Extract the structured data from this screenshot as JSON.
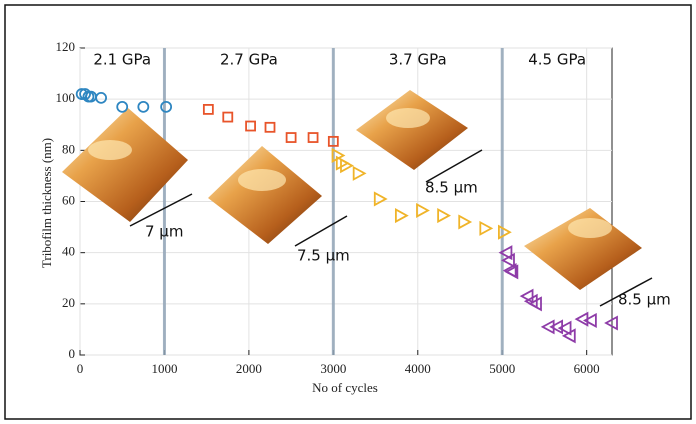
{
  "chart_data": {
    "type": "scatter",
    "xlabel": "No of cycles",
    "ylabel": "Tribofilm thickness (nm)",
    "xlim": [
      0,
      6300
    ],
    "ylim": [
      0,
      120
    ],
    "xticks": [
      0,
      1000,
      2000,
      3000,
      4000,
      5000,
      6000
    ],
    "yticks": [
      0,
      20,
      40,
      60,
      80,
      100,
      120
    ],
    "grid": true,
    "dividers": [
      1000,
      3000,
      5000
    ],
    "series": [
      {
        "name": "2.1 GPa",
        "color": "#2e86c1",
        "marker": "circle",
        "x": [
          20,
          60,
          100,
          130,
          250,
          500,
          750,
          1020
        ],
        "values": [
          102,
          102,
          101,
          101,
          100.5,
          97,
          97,
          97
        ]
      },
      {
        "name": "2.7 GPa",
        "color": "#e8542a",
        "marker": "square",
        "x": [
          1520,
          1750,
          2020,
          2250,
          2500,
          2760,
          3000
        ],
        "values": [
          96,
          93,
          89.5,
          89,
          85,
          85,
          83.5
        ]
      },
      {
        "name": "3.7 GPa",
        "color": "#f0b429",
        "marker": "triangle-right",
        "x": [
          3050,
          3100,
          3150,
          3300,
          3550,
          3800,
          4050,
          4300,
          4550,
          4800,
          5020
        ],
        "values": [
          78,
          75,
          74,
          71,
          61,
          54.5,
          56.5,
          54.5,
          52,
          49.5,
          48
        ]
      },
      {
        "name": "4.5 GPa",
        "color": "#8e3ca8",
        "marker": "triangle-left",
        "x": [
          5050,
          5080,
          5100,
          5120,
          5300,
          5350,
          5400,
          5550,
          5650,
          5750,
          5800,
          5950,
          6050,
          6300
        ],
        "values": [
          40,
          37,
          33,
          32.5,
          23,
          21,
          20,
          11,
          11,
          10.5,
          7.5,
          14,
          13.5,
          12.5
        ]
      }
    ],
    "annotations": [
      "7 μm",
      "7.5 μm",
      "8.5 μm",
      "8.5 μm"
    ]
  }
}
